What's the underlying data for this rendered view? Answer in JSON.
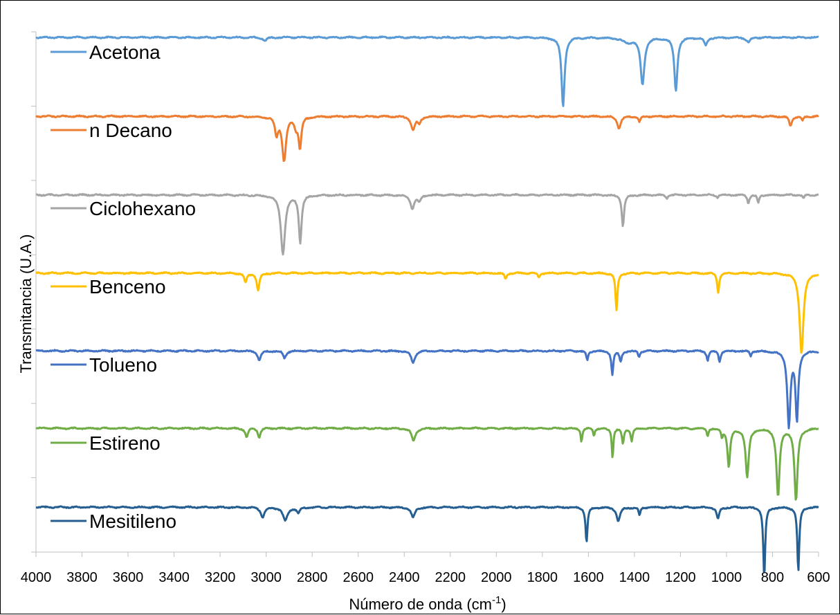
{
  "chart_data": {
    "type": "line",
    "xlabel": "Número de onda (cm",
    "xlabel_sup": "-1",
    "xlabel_end": ")",
    "ylabel": "Transmitancia (U.A.)",
    "xlim": [
      4000,
      600
    ],
    "x_reversed": true,
    "x_ticks": [
      "4000",
      "3800",
      "3600",
      "3400",
      "3200",
      "3000",
      "2800",
      "2600",
      "2400",
      "2200",
      "2000",
      "1800",
      "1600",
      "1400",
      "1200",
      "1000",
      "800",
      "600"
    ],
    "grid": false,
    "legend_position": "left, inline with each trace",
    "series": [
      {
        "name": "Acetona",
        "color": "#5B9BD5",
        "baseline": 0.955,
        "bands": [
          [
            1710,
            0.88,
            8
          ],
          [
            1430,
            0.06,
            25
          ],
          [
            1365,
            0.6,
            10
          ],
          [
            1220,
            0.68,
            8
          ],
          [
            1090,
            0.1,
            8
          ],
          [
            905,
            0.06,
            10
          ],
          [
            3005,
            0.04,
            10
          ]
        ]
      },
      {
        "name": "n Decano",
        "color": "#ED7D31",
        "baseline": 0.945,
        "bands": [
          [
            2955,
            0.22,
            8
          ],
          [
            2922,
            0.56,
            10
          ],
          [
            2870,
            0.12,
            8
          ],
          [
            2853,
            0.4,
            7
          ],
          [
            2362,
            0.17,
            10
          ],
          [
            2335,
            0.08,
            8
          ],
          [
            1467,
            0.15,
            9
          ],
          [
            1378,
            0.07,
            6
          ],
          [
            722,
            0.12,
            7
          ],
          [
            670,
            0.06,
            5
          ]
        ]
      },
      {
        "name": "Ciclohexano",
        "color": "#A5A5A5",
        "baseline": 0.94,
        "bands": [
          [
            2927,
            0.75,
            11
          ],
          [
            2852,
            0.6,
            7
          ],
          [
            2365,
            0.17,
            10
          ],
          [
            2335,
            0.08,
            8
          ],
          [
            1450,
            0.4,
            6
          ],
          [
            1260,
            0.04,
            6
          ],
          [
            905,
            0.1,
            5
          ],
          [
            862,
            0.1,
            5
          ],
          [
            665,
            0.05,
            4
          ],
          [
            1040,
            0.03,
            5
          ]
        ]
      },
      {
        "name": "Benceno",
        "color": "#FFC000",
        "baseline": 0.94,
        "bands": [
          [
            3090,
            0.12,
            7
          ],
          [
            3035,
            0.22,
            7
          ],
          [
            1960,
            0.07,
            6
          ],
          [
            1815,
            0.05,
            6
          ],
          [
            1478,
            0.48,
            5
          ],
          [
            1036,
            0.25,
            5
          ],
          [
            674,
            1.02,
            10
          ]
        ]
      },
      {
        "name": "Tolueno",
        "color": "#4472C4",
        "baseline": 0.945,
        "bands": [
          [
            3030,
            0.12,
            8
          ],
          [
            2920,
            0.09,
            8
          ],
          [
            2362,
            0.15,
            10
          ],
          [
            1605,
            0.12,
            5
          ],
          [
            1496,
            0.3,
            5
          ],
          [
            1460,
            0.13,
            6
          ],
          [
            1380,
            0.07,
            5
          ],
          [
            1082,
            0.12,
            5
          ],
          [
            1030,
            0.14,
            5
          ],
          [
            895,
            0.07,
            4
          ],
          [
            729,
            0.95,
            8
          ],
          [
            694,
            0.87,
            7
          ]
        ]
      },
      {
        "name": "Estireno",
        "color": "#70AD47",
        "baseline": 0.955,
        "bands": [
          [
            3085,
            0.11,
            7
          ],
          [
            3030,
            0.12,
            6
          ],
          [
            2360,
            0.16,
            10
          ],
          [
            1630,
            0.17,
            4
          ],
          [
            1576,
            0.09,
            4
          ],
          [
            1495,
            0.38,
            4
          ],
          [
            1450,
            0.2,
            5
          ],
          [
            1412,
            0.16,
            5
          ],
          [
            1082,
            0.09,
            4
          ],
          [
            1020,
            0.1,
            4
          ],
          [
            990,
            0.49,
            7
          ],
          [
            910,
            0.63,
            8
          ],
          [
            776,
            0.87,
            8
          ],
          [
            698,
            0.93,
            8
          ]
        ]
      },
      {
        "name": "Mesitileno",
        "color": "#255E91",
        "baseline": 0.945,
        "bands": [
          [
            3015,
            0.12,
            10
          ],
          [
            2917,
            0.17,
            12
          ],
          [
            2860,
            0.07,
            8
          ],
          [
            2362,
            0.13,
            10
          ],
          [
            1608,
            0.45,
            5
          ],
          [
            1470,
            0.18,
            9
          ],
          [
            1378,
            0.1,
            5
          ],
          [
            1037,
            0.15,
            7
          ],
          [
            836,
            0.9,
            5
          ],
          [
            688,
            0.83,
            5
          ]
        ]
      }
    ]
  }
}
